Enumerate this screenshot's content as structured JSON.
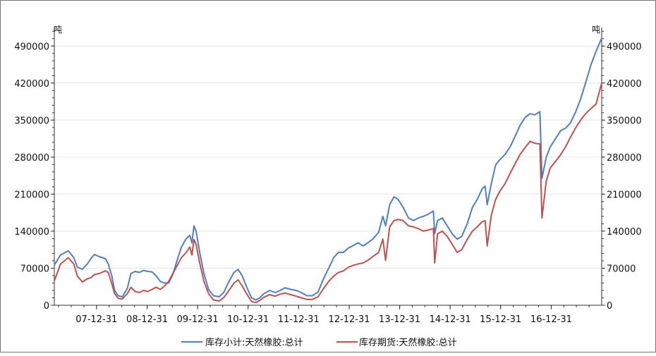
{
  "chart_data": {
    "type": "line",
    "unit_left": "吨",
    "unit_right": "吨",
    "ylim": [
      0,
      525000
    ],
    "yticks": [
      0,
      70000,
      140000,
      210000,
      280000,
      350000,
      420000,
      490000
    ],
    "ytick_labels": [
      "0",
      "70000",
      "140000",
      "210000",
      "280000",
      "350000",
      "420000",
      "490000"
    ],
    "xlim": [
      "2007-03-01",
      "2017-12-31"
    ],
    "xticks": [
      "2007-12-31",
      "2008-12-31",
      "2009-12-31",
      "2010-12-31",
      "2011-12-31",
      "2012-12-31",
      "2013-12-31",
      "2014-12-31",
      "2015-12-31",
      "2016-12-31"
    ],
    "xtick_labels": [
      "07-12-31",
      "08-12-31",
      "09-12-31",
      "10-12-31",
      "11-12-31",
      "12-12-31",
      "13-12-31",
      "14-12-31",
      "15-12-31",
      "16-12-31"
    ],
    "grid": true,
    "legend_position": "bottom",
    "series": [
      {
        "name": "库存小计:天然橡胶:总计",
        "color": "#4f7fbf",
        "points": [
          [
            "2007-03-01",
            76000
          ],
          [
            "2007-04-15",
            95000
          ],
          [
            "2007-06-10",
            103000
          ],
          [
            "2007-07-20",
            90000
          ],
          [
            "2007-08-15",
            72000
          ],
          [
            "2007-09-20",
            68000
          ],
          [
            "2007-10-25",
            78000
          ],
          [
            "2007-11-20",
            88000
          ],
          [
            "2007-12-15",
            96000
          ],
          [
            "2008-01-20",
            92000
          ],
          [
            "2008-03-05",
            88000
          ],
          [
            "2008-03-25",
            78000
          ],
          [
            "2008-04-20",
            55000
          ],
          [
            "2008-05-10",
            28000
          ],
          [
            "2008-06-05",
            18000
          ],
          [
            "2008-07-05",
            16000
          ],
          [
            "2008-08-10",
            32000
          ],
          [
            "2008-09-05",
            60000
          ],
          [
            "2008-10-05",
            64000
          ],
          [
            "2008-11-05",
            62000
          ],
          [
            "2008-12-05",
            66000
          ],
          [
            "2009-01-05",
            64000
          ],
          [
            "2009-02-05",
            63000
          ],
          [
            "2009-03-05",
            56000
          ],
          [
            "2009-04-05",
            45000
          ],
          [
            "2009-05-05",
            42000
          ],
          [
            "2009-06-05",
            42000
          ],
          [
            "2009-07-05",
            58000
          ],
          [
            "2009-08-05",
            85000
          ],
          [
            "2009-09-05",
            110000
          ],
          [
            "2009-10-10",
            126000
          ],
          [
            "2009-11-05",
            132000
          ],
          [
            "2009-11-20",
            118000
          ],
          [
            "2009-12-05",
            150000
          ],
          [
            "2009-12-20",
            140000
          ],
          [
            "2010-01-15",
            100000
          ],
          [
            "2010-02-15",
            60000
          ],
          [
            "2010-03-20",
            30000
          ],
          [
            "2010-04-25",
            18000
          ],
          [
            "2010-06-05",
            16000
          ],
          [
            "2010-07-10",
            25000
          ],
          [
            "2010-08-15",
            45000
          ],
          [
            "2010-09-20",
            62000
          ],
          [
            "2010-10-20",
            68000
          ],
          [
            "2010-11-20",
            55000
          ],
          [
            "2010-12-20",
            35000
          ],
          [
            "2011-01-25",
            14000
          ],
          [
            "2011-02-25",
            10000
          ],
          [
            "2011-03-25",
            14000
          ],
          [
            "2011-04-25",
            22000
          ],
          [
            "2011-06-05",
            28000
          ],
          [
            "2011-07-15",
            24000
          ],
          [
            "2011-08-20",
            28000
          ],
          [
            "2011-09-25",
            33000
          ],
          [
            "2011-11-05",
            30000
          ],
          [
            "2011-12-15",
            28000
          ],
          [
            "2012-01-20",
            24000
          ],
          [
            "2012-03-01",
            18000
          ],
          [
            "2012-04-10",
            18000
          ],
          [
            "2012-05-20",
            25000
          ],
          [
            "2012-06-25",
            48000
          ],
          [
            "2012-08-05",
            70000
          ],
          [
            "2012-09-10",
            90000
          ],
          [
            "2012-10-15",
            100000
          ],
          [
            "2012-11-20",
            100000
          ],
          [
            "2012-12-25",
            108000
          ],
          [
            "2013-01-25",
            112000
          ],
          [
            "2013-03-05",
            118000
          ],
          [
            "2013-04-10",
            112000
          ],
          [
            "2013-05-15",
            118000
          ],
          [
            "2013-06-20",
            125000
          ],
          [
            "2013-08-01",
            138000
          ],
          [
            "2013-09-01",
            168000
          ],
          [
            "2013-09-20",
            150000
          ],
          [
            "2013-10-20",
            190000
          ],
          [
            "2013-11-20",
            205000
          ],
          [
            "2013-12-20",
            200000
          ],
          [
            "2014-01-25",
            185000
          ],
          [
            "2014-03-05",
            165000
          ],
          [
            "2014-04-10",
            160000
          ],
          [
            "2014-05-15",
            165000
          ],
          [
            "2014-06-20",
            168000
          ],
          [
            "2014-07-25",
            172000
          ],
          [
            "2014-09-01",
            178000
          ],
          [
            "2014-09-10",
            135000
          ],
          [
            "2014-10-01",
            160000
          ],
          [
            "2014-11-05",
            165000
          ],
          [
            "2014-12-10",
            150000
          ],
          [
            "2015-01-15",
            135000
          ],
          [
            "2015-02-20",
            125000
          ],
          [
            "2015-03-25",
            130000
          ],
          [
            "2015-05-05",
            155000
          ],
          [
            "2015-06-10",
            185000
          ],
          [
            "2015-07-15",
            200000
          ],
          [
            "2015-08-20",
            220000
          ],
          [
            "2015-09-10",
            225000
          ],
          [
            "2015-09-25",
            190000
          ],
          [
            "2015-10-25",
            230000
          ],
          [
            "2015-11-25",
            265000
          ],
          [
            "2015-12-25",
            275000
          ],
          [
            "2016-02-01",
            285000
          ],
          [
            "2016-03-10",
            300000
          ],
          [
            "2016-04-15",
            320000
          ],
          [
            "2016-05-20",
            340000
          ],
          [
            "2016-06-25",
            355000
          ],
          [
            "2016-08-01",
            362000
          ],
          [
            "2016-09-05",
            360000
          ],
          [
            "2016-10-10",
            366000
          ],
          [
            "2016-10-25",
            240000
          ],
          [
            "2016-11-25",
            280000
          ],
          [
            "2016-12-25",
            300000
          ],
          [
            "2017-02-01",
            315000
          ],
          [
            "2017-03-10",
            330000
          ],
          [
            "2017-04-15",
            335000
          ],
          [
            "2017-05-20",
            345000
          ],
          [
            "2017-06-25",
            365000
          ],
          [
            "2017-08-01",
            390000
          ],
          [
            "2017-09-05",
            420000
          ],
          [
            "2017-10-15",
            455000
          ],
          [
            "2017-11-20",
            480000
          ],
          [
            "2017-12-31",
            505000
          ]
        ]
      },
      {
        "name": "库存期货:天然橡胶:总计",
        "color": "#c0504d",
        "points": [
          [
            "2007-03-01",
            46000
          ],
          [
            "2007-04-15",
            78000
          ],
          [
            "2007-06-10",
            90000
          ],
          [
            "2007-07-20",
            78000
          ],
          [
            "2007-08-15",
            55000
          ],
          [
            "2007-09-20",
            44000
          ],
          [
            "2007-10-25",
            50000
          ],
          [
            "2007-11-20",
            52000
          ],
          [
            "2007-12-15",
            58000
          ],
          [
            "2008-01-20",
            60000
          ],
          [
            "2008-03-05",
            65000
          ],
          [
            "2008-03-25",
            62000
          ],
          [
            "2008-04-20",
            40000
          ],
          [
            "2008-05-10",
            22000
          ],
          [
            "2008-06-05",
            13000
          ],
          [
            "2008-07-05",
            12000
          ],
          [
            "2008-08-10",
            22000
          ],
          [
            "2008-09-05",
            34000
          ],
          [
            "2008-10-05",
            26000
          ],
          [
            "2008-11-05",
            24000
          ],
          [
            "2008-12-05",
            28000
          ],
          [
            "2009-01-05",
            26000
          ],
          [
            "2009-02-05",
            30000
          ],
          [
            "2009-03-05",
            34000
          ],
          [
            "2009-04-05",
            30000
          ],
          [
            "2009-05-05",
            36000
          ],
          [
            "2009-06-05",
            45000
          ],
          [
            "2009-07-05",
            60000
          ],
          [
            "2009-08-05",
            75000
          ],
          [
            "2009-09-05",
            90000
          ],
          [
            "2009-10-10",
            100000
          ],
          [
            "2009-11-05",
            110000
          ],
          [
            "2009-11-20",
            95000
          ],
          [
            "2009-12-05",
            124000
          ],
          [
            "2009-12-20",
            115000
          ],
          [
            "2010-01-15",
            80000
          ],
          [
            "2010-02-15",
            45000
          ],
          [
            "2010-03-20",
            22000
          ],
          [
            "2010-04-25",
            10000
          ],
          [
            "2010-06-05",
            8000
          ],
          [
            "2010-07-10",
            15000
          ],
          [
            "2010-08-15",
            28000
          ],
          [
            "2010-09-20",
            42000
          ],
          [
            "2010-10-20",
            48000
          ],
          [
            "2010-11-20",
            36000
          ],
          [
            "2010-12-20",
            22000
          ],
          [
            "2011-01-25",
            7000
          ],
          [
            "2011-02-25",
            5000
          ],
          [
            "2011-03-25",
            9000
          ],
          [
            "2011-04-25",
            15000
          ],
          [
            "2011-06-05",
            20000
          ],
          [
            "2011-07-15",
            17000
          ],
          [
            "2011-08-20",
            21000
          ],
          [
            "2011-09-25",
            23000
          ],
          [
            "2011-11-05",
            20000
          ],
          [
            "2011-12-15",
            17000
          ],
          [
            "2012-01-20",
            14000
          ],
          [
            "2012-03-01",
            11000
          ],
          [
            "2012-04-10",
            11000
          ],
          [
            "2012-05-20",
            16000
          ],
          [
            "2012-06-25",
            30000
          ],
          [
            "2012-08-05",
            45000
          ],
          [
            "2012-09-10",
            55000
          ],
          [
            "2012-10-15",
            62000
          ],
          [
            "2012-11-20",
            65000
          ],
          [
            "2012-12-25",
            72000
          ],
          [
            "2013-01-25",
            75000
          ],
          [
            "2013-03-05",
            78000
          ],
          [
            "2013-04-10",
            80000
          ],
          [
            "2013-05-15",
            85000
          ],
          [
            "2013-06-20",
            92000
          ],
          [
            "2013-08-01",
            100000
          ],
          [
            "2013-09-01",
            125000
          ],
          [
            "2013-09-20",
            85000
          ],
          [
            "2013-10-20",
            148000
          ],
          [
            "2013-11-20",
            160000
          ],
          [
            "2013-12-20",
            162000
          ],
          [
            "2014-01-25",
            160000
          ],
          [
            "2014-03-05",
            150000
          ],
          [
            "2014-04-10",
            148000
          ],
          [
            "2014-05-15",
            145000
          ],
          [
            "2014-06-20",
            140000
          ],
          [
            "2014-07-25",
            142000
          ],
          [
            "2014-09-01",
            145000
          ],
          [
            "2014-09-10",
            80000
          ],
          [
            "2014-10-01",
            135000
          ],
          [
            "2014-11-05",
            140000
          ],
          [
            "2014-12-10",
            130000
          ],
          [
            "2015-01-15",
            115000
          ],
          [
            "2015-02-20",
            100000
          ],
          [
            "2015-03-25",
            105000
          ],
          [
            "2015-05-05",
            125000
          ],
          [
            "2015-06-10",
            140000
          ],
          [
            "2015-07-15",
            148000
          ],
          [
            "2015-08-20",
            158000
          ],
          [
            "2015-09-10",
            160000
          ],
          [
            "2015-09-25",
            112000
          ],
          [
            "2015-10-25",
            170000
          ],
          [
            "2015-11-25",
            200000
          ],
          [
            "2015-12-25",
            215000
          ],
          [
            "2016-02-01",
            230000
          ],
          [
            "2016-03-10",
            250000
          ],
          [
            "2016-04-15",
            268000
          ],
          [
            "2016-05-20",
            285000
          ],
          [
            "2016-06-25",
            298000
          ],
          [
            "2016-08-01",
            310000
          ],
          [
            "2016-09-05",
            306000
          ],
          [
            "2016-10-10",
            305000
          ],
          [
            "2016-10-25",
            165000
          ],
          [
            "2016-11-25",
            235000
          ],
          [
            "2016-12-25",
            260000
          ],
          [
            "2017-02-01",
            272000
          ],
          [
            "2017-03-10",
            285000
          ],
          [
            "2017-04-15",
            300000
          ],
          [
            "2017-05-20",
            318000
          ],
          [
            "2017-06-25",
            335000
          ],
          [
            "2017-08-01",
            350000
          ],
          [
            "2017-09-05",
            362000
          ],
          [
            "2017-10-15",
            372000
          ],
          [
            "2017-11-20",
            380000
          ],
          [
            "2017-12-31",
            420000
          ]
        ]
      }
    ]
  }
}
